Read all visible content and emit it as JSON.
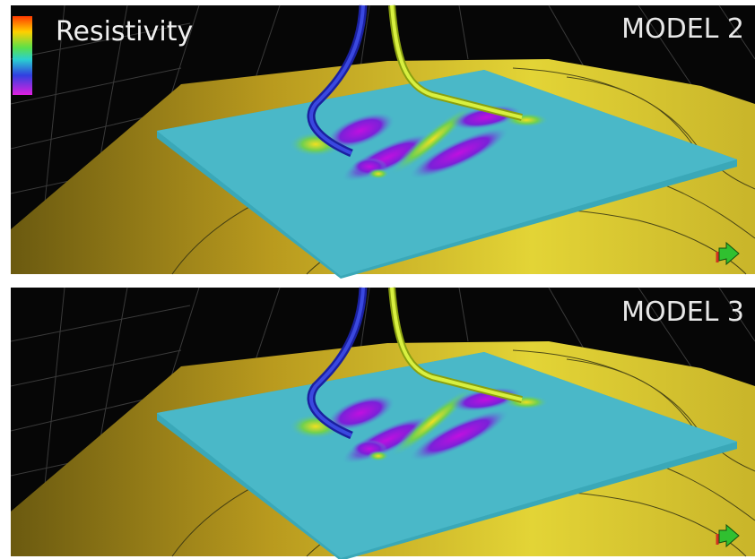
{
  "legend": {
    "title": "Resistivity"
  },
  "panels": [
    {
      "label": "MODEL 2"
    },
    {
      "label": "MODEL 3"
    }
  ]
}
